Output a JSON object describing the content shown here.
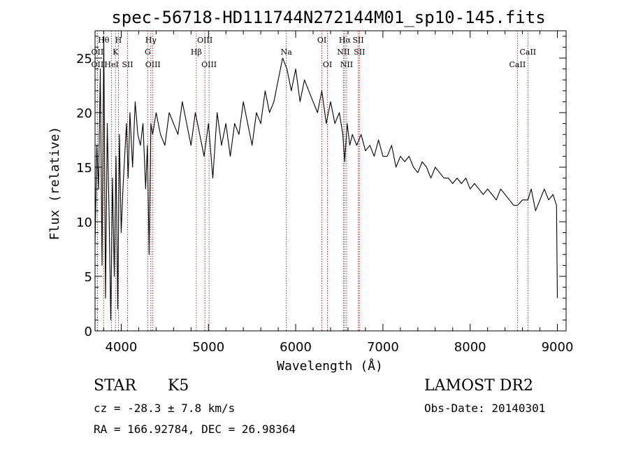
{
  "chart_data": {
    "type": "line",
    "title": "spec-56718-HD111744N272144M01_sp10-145.fits",
    "xlabel": "Wavelength (Å)",
    "ylabel": "Flux (relative)",
    "xlim": [
      3700,
      9100
    ],
    "ylim": [
      0,
      27.5
    ],
    "xticks": [
      4000,
      5000,
      6000,
      7000,
      8000,
      9000
    ],
    "yticks": [
      0,
      5,
      10,
      15,
      20,
      25
    ],
    "line_color": "#000000",
    "marker_color": "#a0342f",
    "series": [
      {
        "x": [
          3700,
          3720,
          3740,
          3760,
          3780,
          3800,
          3820,
          3840,
          3860,
          3880,
          3900,
          3920,
          3940,
          3960,
          3980,
          4000,
          4020,
          4040,
          4060,
          4080,
          4100,
          4130,
          4160,
          4190,
          4220,
          4250,
          4280,
          4300,
          4320,
          4340,
          4360,
          4400,
          4450,
          4500,
          4550,
          4600,
          4650,
          4700,
          4750,
          4800,
          4850,
          4900,
          4950,
          5000,
          5050,
          5100,
          5150,
          5200,
          5250,
          5300,
          5350,
          5400,
          5450,
          5500,
          5550,
          5600,
          5650,
          5700,
          5750,
          5800,
          5850,
          5900,
          5950,
          6000,
          6050,
          6100,
          6150,
          6200,
          6250,
          6300,
          6350,
          6400,
          6450,
          6500,
          6540,
          6563,
          6590,
          6620,
          6650,
          6700,
          6750,
          6800,
          6850,
          6900,
          6950,
          7000,
          7050,
          7100,
          7150,
          7200,
          7250,
          7300,
          7350,
          7400,
          7450,
          7500,
          7550,
          7600,
          7650,
          7700,
          7750,
          7800,
          7850,
          7900,
          7950,
          8000,
          8050,
          8100,
          8150,
          8200,
          8250,
          8300,
          8350,
          8400,
          8450,
          8500,
          8542,
          8600,
          8662,
          8700,
          8750,
          8800,
          8850,
          8900,
          8950,
          8990,
          9000
        ],
        "y": [
          8,
          17,
          13,
          24,
          6,
          27,
          3,
          19,
          11,
          1,
          14,
          5,
          16,
          2,
          18,
          9,
          13,
          16,
          19,
          14,
          20,
          15,
          21,
          18,
          17,
          19,
          13,
          17,
          7,
          19,
          18,
          20,
          18,
          17,
          20,
          19,
          18,
          21,
          19,
          17,
          20,
          18,
          16,
          19,
          14,
          20,
          17,
          19,
          16,
          19,
          18,
          21,
          19,
          17,
          20,
          19,
          22,
          20,
          21,
          23,
          25,
          24,
          22,
          24,
          21,
          23,
          22,
          21,
          20,
          22,
          19,
          21,
          19,
          20,
          18,
          15.5,
          19,
          17,
          18,
          17,
          18,
          16.5,
          17,
          16,
          17.5,
          16,
          16,
          17,
          15,
          16,
          15.5,
          16,
          15,
          14.5,
          15.5,
          15,
          14,
          15,
          14.5,
          14,
          14,
          13.5,
          14,
          13.5,
          14,
          13,
          13.5,
          13,
          12.5,
          13,
          12.5,
          12,
          13,
          12.5,
          12,
          11.5,
          11.5,
          12,
          12,
          13,
          11,
          12,
          13,
          12,
          12.5,
          11.5,
          3
        ]
      }
    ],
    "lines": [
      {
        "label": "OII",
        "wl": 3727,
        "row": 1
      },
      {
        "label": "Hθ",
        "wl": 3798,
        "row": 0
      },
      {
        "label": "OII",
        "wl": 3727,
        "row": 2
      },
      {
        "label": "HeI",
        "wl": 3889,
        "row": 2
      },
      {
        "label": "K",
        "wl": 3934,
        "row": 1
      },
      {
        "label": "H",
        "wl": 3968,
        "row": 0
      },
      {
        "label": "SII",
        "wl": 4072,
        "row": 2
      },
      {
        "label": "Hγ",
        "wl": 4340,
        "row": 0
      },
      {
        "label": "G",
        "wl": 4304,
        "row": 1
      },
      {
        "label": "OIII",
        "wl": 4363,
        "row": 2
      },
      {
        "label": "OIII",
        "wl": 4959,
        "row": 0
      },
      {
        "label": "Hβ",
        "wl": 4861,
        "row": 1
      },
      {
        "label": "OIII",
        "wl": 5007,
        "row": 2
      },
      {
        "label": "Na",
        "wl": 5893,
        "row": 1
      },
      {
        "label": "OI",
        "wl": 6300,
        "row": 0
      },
      {
        "label": "OI",
        "wl": 6364,
        "row": 2
      },
      {
        "label": "Hα",
        "wl": 6563,
        "row": 0
      },
      {
        "label": "SII",
        "wl": 6717,
        "row": 0
      },
      {
        "label": "NII",
        "wl": 6548,
        "row": 1
      },
      {
        "label": "SII",
        "wl": 6731,
        "row": 1
      },
      {
        "label": "NII",
        "wl": 6584,
        "row": 2
      },
      {
        "label": "CaII",
        "wl": 8662,
        "row": 1
      },
      {
        "label": "CaII",
        "wl": 8542,
        "row": 2
      }
    ]
  },
  "info": {
    "object_class": "STAR",
    "subclass": "K5",
    "survey": "LAMOST DR2",
    "redshift": "cz = -28.3 ± 7.8 km/s",
    "obs_date": "Obs-Date: 20140301",
    "coords": "RA = 166.92784, DEC =  26.98364"
  }
}
